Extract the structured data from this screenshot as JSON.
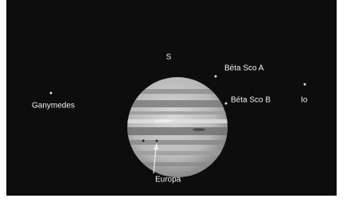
{
  "labels": {
    "south": "S",
    "beta_sco_a": "Béta Sco A",
    "beta_sco_b": "Béta Sco B",
    "io": "Io",
    "ganymedes": "Ganymedes",
    "europa": "Europa"
  }
}
